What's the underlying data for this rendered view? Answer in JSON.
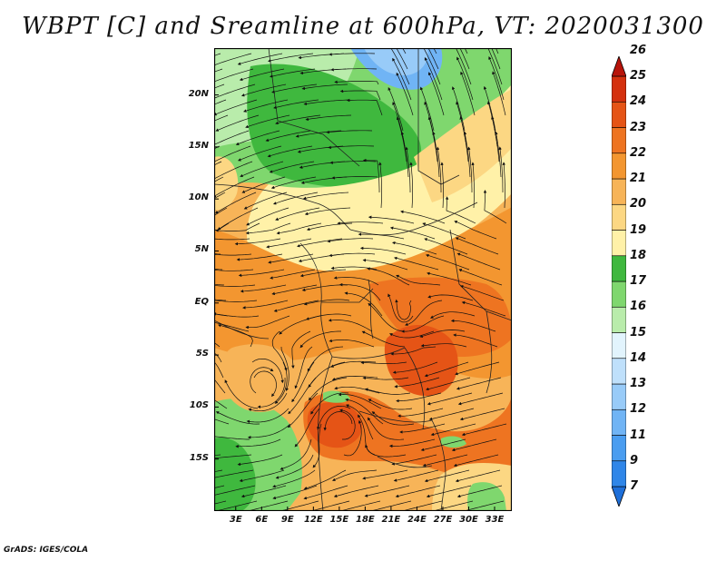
{
  "title": "WBPT [C] and Sreamline at 600hPa, VT: 2020031300",
  "footer": "GrADS: IGES/COLA",
  "map": {
    "lat_labels": [
      "20N",
      "15N",
      "10N",
      "5N",
      "EQ",
      "5S",
      "10S",
      "15S"
    ],
    "lat_values": [
      20,
      15,
      10,
      5,
      0,
      -5,
      -10,
      -15
    ],
    "lon_labels": [
      "3E",
      "6E",
      "9E",
      "12E",
      "15E",
      "18E",
      "21E",
      "24E",
      "27E",
      "30E",
      "33E"
    ],
    "lon_values": [
      3,
      6,
      9,
      12,
      15,
      18,
      21,
      24,
      27,
      30,
      33
    ],
    "lon_range": [
      0.5,
      35
    ],
    "lat_range": [
      -20,
      24.5
    ]
  },
  "colorbar": {
    "labels": [
      "7",
      "9",
      "11",
      "12",
      "13",
      "14",
      "15",
      "16",
      "17",
      "18",
      "19",
      "20",
      "21",
      "22",
      "23",
      "24",
      "25",
      "26"
    ],
    "colors": [
      "#1e6fd9",
      "#2f86e8",
      "#4a9df0",
      "#70b4f5",
      "#98cbf8",
      "#bfe0fb",
      "#e2f4fd",
      "#b9ecab",
      "#7fd76e",
      "#3fb83e",
      "#fff1a8",
      "#fcd783",
      "#f7b458",
      "#f39630",
      "#ee7421",
      "#e55416",
      "#d4300e",
      "#b7140a"
    ]
  },
  "fields": {
    "colors": {
      "green_dark": "#3fb83e",
      "green": "#7fd76e",
      "green_light": "#b9ecab",
      "blue": "#70b4f5",
      "blue_light": "#98cbf8",
      "yellow": "#fff1a8",
      "yellow_mid": "#fcd783",
      "orange_light": "#f7b458",
      "orange": "#f39630",
      "orange_dark": "#ee7421",
      "red_orange": "#e55416"
    }
  }
}
